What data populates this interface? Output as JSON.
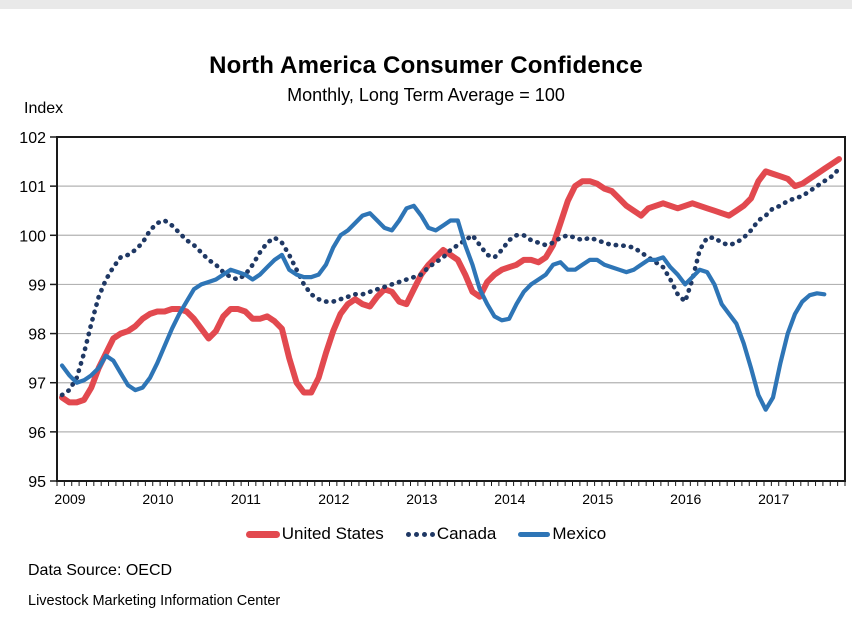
{
  "page": {
    "title": "North America Consumer Confidence",
    "subtitle": "Monthly, Long Term Average = 100",
    "source_line": "Data Source:  OECD",
    "footer_line": "Livestock Marketing Information Center"
  },
  "axes": {
    "y_title": "Index",
    "y_ticks": [
      102,
      101,
      100,
      99,
      98,
      97,
      96,
      95
    ],
    "x_ticks": [
      "2009",
      "2010",
      "2011",
      "2012",
      "2013",
      "2014",
      "2015",
      "2016",
      "2017"
    ]
  },
  "legend": {
    "items": [
      {
        "label": "United States",
        "color": "#e2494f",
        "style": "solid-thick"
      },
      {
        "label": "Canada",
        "color": "#1f3864",
        "style": "dotted"
      },
      {
        "label": "Mexico",
        "color": "#2e75b6",
        "style": "solid"
      }
    ]
  },
  "colors": {
    "us": "#e2494f",
    "canada": "#1f3864",
    "mexico": "#2e75b6",
    "grid": "#b3b3b3",
    "axis": "#1a1a1a",
    "top_strip": "#e9e9e9"
  },
  "chart_data": {
    "type": "line",
    "title": "North America Consumer Confidence",
    "subtitle": "Monthly, Long Term Average = 100",
    "ylabel": "Index",
    "ylim": [
      95,
      102
    ],
    "grid": "horizontal",
    "legend_position": "bottom",
    "x_frequency": "monthly",
    "x_start": "2009-01",
    "x_year_labels": [
      2009,
      2010,
      2011,
      2012,
      2013,
      2014,
      2015,
      2016,
      2017
    ],
    "series": [
      {
        "name": "United States",
        "color": "#e2494f",
        "line": "solid-thick",
        "x_end": "2017-11",
        "values": [
          96.7,
          96.6,
          96.6,
          96.65,
          96.9,
          97.3,
          97.6,
          97.9,
          98.0,
          98.05,
          98.15,
          98.3,
          98.4,
          98.45,
          98.45,
          98.5,
          98.5,
          98.45,
          98.3,
          98.1,
          97.9,
          98.05,
          98.35,
          98.5,
          98.5,
          98.45,
          98.3,
          98.3,
          98.35,
          98.25,
          98.1,
          97.5,
          97.0,
          96.8,
          96.8,
          97.1,
          97.6,
          98.05,
          98.4,
          98.6,
          98.7,
          98.6,
          98.55,
          98.75,
          98.9,
          98.85,
          98.65,
          98.6,
          98.9,
          99.2,
          99.4,
          99.55,
          99.7,
          99.6,
          99.5,
          99.2,
          98.85,
          98.75,
          99.05,
          99.2,
          99.3,
          99.35,
          99.4,
          99.5,
          99.5,
          99.45,
          99.55,
          99.8,
          100.25,
          100.7,
          101.0,
          101.1,
          101.1,
          101.05,
          100.95,
          100.9,
          100.75,
          100.6,
          100.5,
          100.4,
          100.55,
          100.6,
          100.65,
          100.6,
          100.55,
          100.6,
          100.65,
          100.6,
          100.55,
          100.5,
          100.45,
          100.4,
          100.5,
          100.6,
          100.75,
          101.1,
          101.3,
          101.25,
          101.2,
          101.15,
          101.0,
          101.05,
          101.15,
          101.25,
          101.35,
          101.45,
          101.55
        ]
      },
      {
        "name": "Canada",
        "color": "#1f3864",
        "line": "dotted",
        "x_end": "2017-11",
        "values": [
          96.75,
          96.85,
          97.1,
          97.6,
          98.2,
          98.75,
          99.1,
          99.35,
          99.55,
          99.6,
          99.7,
          99.85,
          100.1,
          100.25,
          100.3,
          100.2,
          100.05,
          99.9,
          99.8,
          99.65,
          99.5,
          99.4,
          99.25,
          99.15,
          99.1,
          99.2,
          99.4,
          99.65,
          99.85,
          99.95,
          99.85,
          99.6,
          99.3,
          99.0,
          98.8,
          98.7,
          98.65,
          98.65,
          98.7,
          98.75,
          98.8,
          98.8,
          98.85,
          98.9,
          98.95,
          99.0,
          99.05,
          99.1,
          99.15,
          99.2,
          99.35,
          99.45,
          99.55,
          99.7,
          99.8,
          99.9,
          100.0,
          99.8,
          99.6,
          99.55,
          99.7,
          99.9,
          100.0,
          100.0,
          99.9,
          99.85,
          99.8,
          99.85,
          99.95,
          100.0,
          99.95,
          99.9,
          99.95,
          99.9,
          99.85,
          99.8,
          99.8,
          99.78,
          99.75,
          99.65,
          99.55,
          99.45,
          99.35,
          99.1,
          98.8,
          98.65,
          99.1,
          99.7,
          99.95,
          99.95,
          99.85,
          99.8,
          99.85,
          99.95,
          100.1,
          100.3,
          100.4,
          100.55,
          100.6,
          100.7,
          100.75,
          100.8,
          100.9,
          101.0,
          101.1,
          101.2,
          101.35
        ]
      },
      {
        "name": "Mexico",
        "color": "#2e75b6",
        "line": "solid",
        "x_end": "2017-09",
        "values": [
          97.35,
          97.15,
          97.0,
          97.05,
          97.15,
          97.3,
          97.55,
          97.45,
          97.2,
          96.95,
          96.85,
          96.9,
          97.1,
          97.4,
          97.75,
          98.1,
          98.4,
          98.65,
          98.9,
          99.0,
          99.05,
          99.1,
          99.2,
          99.3,
          99.25,
          99.2,
          99.1,
          99.2,
          99.35,
          99.5,
          99.6,
          99.3,
          99.2,
          99.15,
          99.15,
          99.2,
          99.4,
          99.75,
          100.0,
          100.1,
          100.25,
          100.4,
          100.45,
          100.3,
          100.15,
          100.1,
          100.3,
          100.55,
          100.6,
          100.4,
          100.15,
          100.1,
          100.2,
          100.3,
          100.3,
          99.8,
          99.4,
          98.9,
          98.6,
          98.35,
          98.27,
          98.3,
          98.6,
          98.85,
          99.0,
          99.1,
          99.2,
          99.4,
          99.45,
          99.3,
          99.3,
          99.4,
          99.5,
          99.5,
          99.4,
          99.35,
          99.3,
          99.25,
          99.3,
          99.4,
          99.5,
          99.5,
          99.55,
          99.35,
          99.2,
          99.0,
          99.15,
          99.3,
          99.25,
          99.0,
          98.6,
          98.4,
          98.2,
          97.8,
          97.3,
          96.75,
          96.45,
          96.7,
          97.4,
          98.0,
          98.4,
          98.65,
          98.78,
          98.82,
          98.8
        ]
      }
    ]
  }
}
